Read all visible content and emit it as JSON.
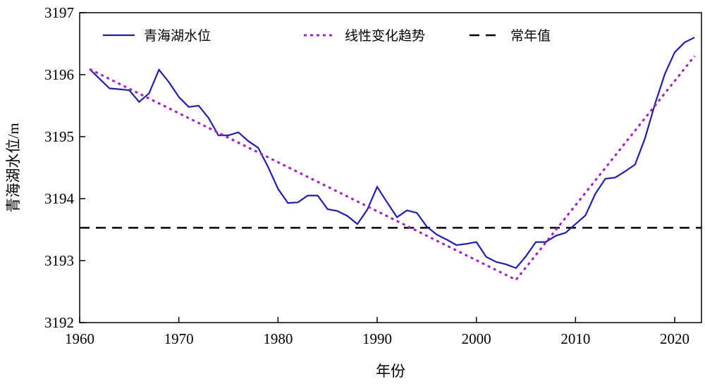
{
  "chart_data": {
    "type": "line",
    "x_label": "年份",
    "y_label": "青海湖水位/m",
    "xlim": [
      1960,
      2022.7
    ],
    "xticks": [
      1960,
      1970,
      1980,
      1990,
      2000,
      2010,
      2020
    ],
    "ylim": [
      3192,
      3197
    ],
    "yticks": [
      3192,
      3193,
      3194,
      3195,
      3196,
      3197
    ],
    "legend_position": "top-left",
    "series": [
      {
        "name": "青海湖水位",
        "color": "#1f1fa8",
        "style": "solid",
        "x": [
          1961,
          1963,
          1965,
          1966,
          1967,
          1968,
          1969,
          1970,
          1971,
          1972,
          1973,
          1974,
          1975,
          1976,
          1977,
          1978,
          1979,
          1980,
          1981,
          1982,
          1983,
          1984,
          1985,
          1986,
          1987,
          1988,
          1989,
          1990,
          1991,
          1992,
          1993,
          1994,
          1995,
          1996,
          1997,
          1998,
          1999,
          2000,
          2001,
          2002,
          2003,
          2004,
          2005,
          2006,
          2007,
          2008,
          2009,
          2010,
          2011,
          2012,
          2013,
          2014,
          2015,
          2016,
          2017,
          2018,
          2019,
          2020,
          2021,
          2022
        ],
        "values": [
          3196.09,
          3195.78,
          3195.75,
          3195.56,
          3195.7,
          3196.08,
          3195.88,
          3195.64,
          3195.48,
          3195.5,
          3195.3,
          3195.02,
          3195.02,
          3195.07,
          3194.93,
          3194.82,
          3194.51,
          3194.16,
          3193.93,
          3193.94,
          3194.05,
          3194.05,
          3193.83,
          3193.8,
          3193.72,
          3193.59,
          3193.82,
          3194.19,
          3193.94,
          3193.7,
          3193.81,
          3193.77,
          3193.55,
          3193.42,
          3193.34,
          3193.25,
          3193.27,
          3193.3,
          3193.06,
          3192.98,
          3192.94,
          3192.88,
          3193.07,
          3193.3,
          3193.3,
          3193.4,
          3193.45,
          3193.59,
          3193.73,
          3194.08,
          3194.32,
          3194.34,
          3194.44,
          3194.55,
          3194.97,
          3195.52,
          3196.01,
          3196.36,
          3196.52,
          3196.6
        ]
      },
      {
        "name": "线性变化趋势",
        "color": "#a020c0",
        "style": "dotted",
        "x": [
          1961,
          2004,
          2022
        ],
        "values": [
          3196.09,
          3192.69,
          3196.3
        ]
      }
    ],
    "reference_line": {
      "name": "常年值",
      "color": "#000000",
      "style": "dashed",
      "value": 3193.53
    }
  }
}
